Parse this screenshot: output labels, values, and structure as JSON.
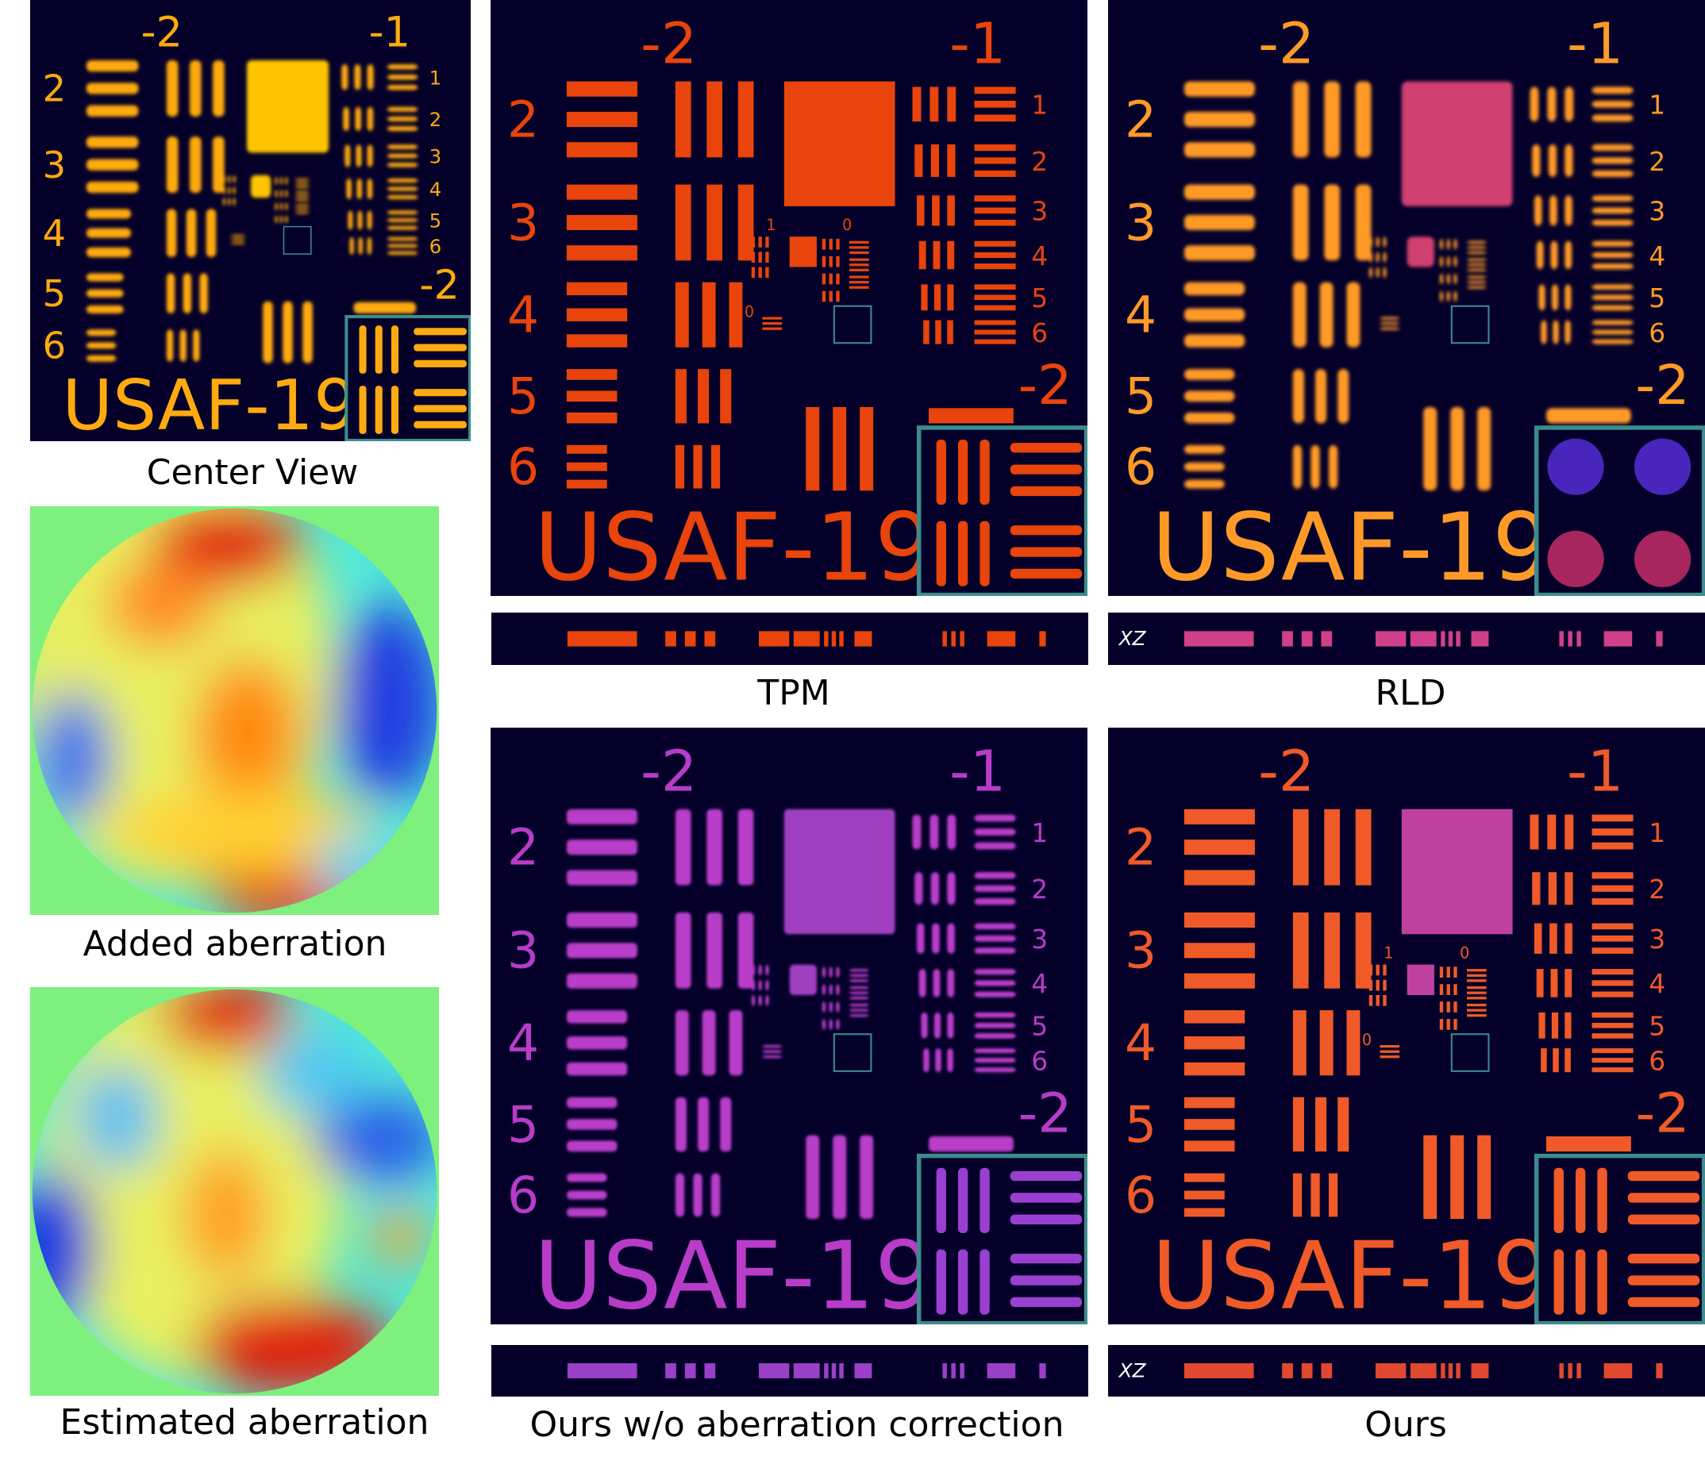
{
  "target": {
    "group_labels": [
      "-2",
      "-1",
      "-2"
    ],
    "left_rows": [
      "2",
      "3",
      "4",
      "5",
      "6"
    ],
    "right_rows": [
      "1",
      "2",
      "3",
      "4",
      "5",
      "6"
    ],
    "inner_labels": [
      "1",
      "0",
      "0"
    ],
    "name": "USAF-19"
  },
  "xz_label": "XZ",
  "captions": {
    "center_view": "Center View",
    "added": "Added aberration",
    "estimated": "Estimated aberration",
    "tpm": "TPM",
    "rld": "RLD",
    "ours_wo": "Ours w/o aberration correction",
    "ours": "Ours"
  }
}
